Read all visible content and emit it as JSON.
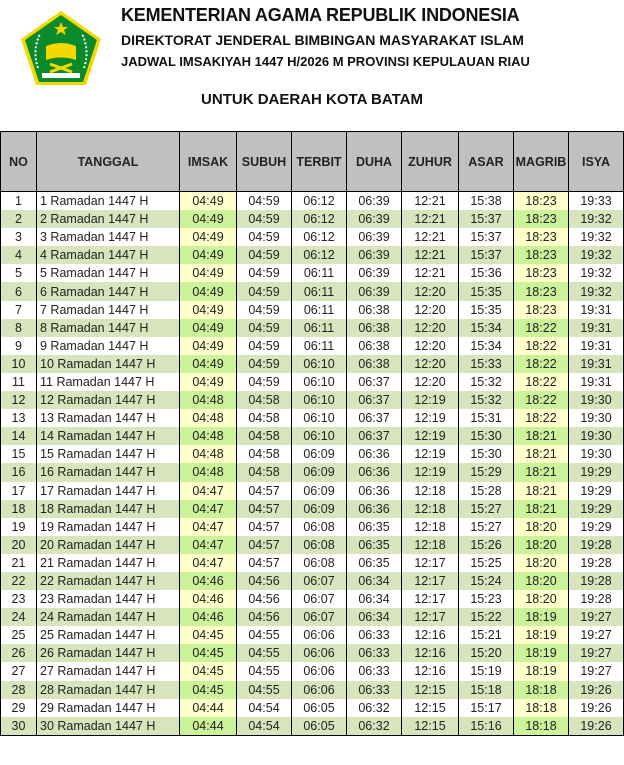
{
  "header": {
    "title": "KEMENTERIAN AGAMA REPUBLIK INDONESIA",
    "subtitle": "DIREKTORAT JENDERAL BIMBINGAN MASYARAKAT ISLAM",
    "schedule": "JADWAL IMSAKIYAH 1447 H/2026 M PROVINSI KEPULAUAN RIAU",
    "region": "UNTUK DAERAH KOTA BATAM",
    "logo_text": "IKHLAS BERAMAL"
  },
  "colors": {
    "header_bg": "#c0c0c0",
    "even_row": "#d8e4bc",
    "highlight_odd": "#ffffcc",
    "highlight_even": "#ccf29a"
  },
  "columns": [
    "NO",
    "TANGGAL",
    "IMSAK",
    "SUBUH",
    "TERBIT",
    "DUHA",
    "ZUHUR",
    "ASAR",
    "MAGRIB",
    "ISYA"
  ],
  "rows": [
    [
      "1",
      "1 Ramadan 1447 H",
      "04:49",
      "04:59",
      "06:12",
      "06:39",
      "12:21",
      "15:38",
      "18:23",
      "19:33"
    ],
    [
      "2",
      "2 Ramadan 1447 H",
      "04:49",
      "04:59",
      "06:12",
      "06:39",
      "12:21",
      "15:37",
      "18:23",
      "19:32"
    ],
    [
      "3",
      "3 Ramadan 1447 H",
      "04:49",
      "04:59",
      "06:12",
      "06:39",
      "12:21",
      "15:37",
      "18:23",
      "19:32"
    ],
    [
      "4",
      "4 Ramadan 1447 H",
      "04:49",
      "04:59",
      "06:12",
      "06:39",
      "12:21",
      "15:37",
      "18:23",
      "19:32"
    ],
    [
      "5",
      "5 Ramadan 1447 H",
      "04:49",
      "04:59",
      "06:11",
      "06:39",
      "12:21",
      "15:36",
      "18:23",
      "19:32"
    ],
    [
      "6",
      "6 Ramadan 1447 H",
      "04:49",
      "04:59",
      "06:11",
      "06:39",
      "12:20",
      "15:35",
      "18:23",
      "19:32"
    ],
    [
      "7",
      "7 Ramadan 1447 H",
      "04:49",
      "04:59",
      "06:11",
      "06:38",
      "12:20",
      "15:35",
      "18:23",
      "19:31"
    ],
    [
      "8",
      "8 Ramadan 1447 H",
      "04:49",
      "04:59",
      "06:11",
      "06:38",
      "12:20",
      "15:34",
      "18:22",
      "19:31"
    ],
    [
      "9",
      "9 Ramadan 1447 H",
      "04:49",
      "04:59",
      "06:11",
      "06:38",
      "12:20",
      "15:34",
      "18:22",
      "19:31"
    ],
    [
      "10",
      "10 Ramadan 1447 H",
      "04:49",
      "04:59",
      "06:10",
      "06:38",
      "12:20",
      "15:33",
      "18:22",
      "19:31"
    ],
    [
      "11",
      "11 Ramadan 1447 H",
      "04:49",
      "04:59",
      "06:10",
      "06:37",
      "12:20",
      "15:32",
      "18:22",
      "19:31"
    ],
    [
      "12",
      "12 Ramadan 1447 H",
      "04:48",
      "04:58",
      "06:10",
      "06:37",
      "12:19",
      "15:32",
      "18:22",
      "19:30"
    ],
    [
      "13",
      "13 Ramadan 1447 H",
      "04:48",
      "04:58",
      "06:10",
      "06:37",
      "12:19",
      "15:31",
      "18:22",
      "19:30"
    ],
    [
      "14",
      "14 Ramadan 1447 H",
      "04:48",
      "04:58",
      "06:10",
      "06:37",
      "12:19",
      "15:30",
      "18:21",
      "19:30"
    ],
    [
      "15",
      "15 Ramadan 1447 H",
      "04:48",
      "04:58",
      "06:09",
      "06:36",
      "12:19",
      "15:30",
      "18:21",
      "19:30"
    ],
    [
      "16",
      "16 Ramadan 1447 H",
      "04:48",
      "04:58",
      "06:09",
      "06:36",
      "12:19",
      "15:29",
      "18:21",
      "19:29"
    ],
    [
      "17",
      "17 Ramadan 1447 H",
      "04:47",
      "04:57",
      "06:09",
      "06:36",
      "12:18",
      "15:28",
      "18:21",
      "19:29"
    ],
    [
      "18",
      "18 Ramadan 1447 H",
      "04:47",
      "04:57",
      "06:09",
      "06:36",
      "12:18",
      "15:27",
      "18:21",
      "19:29"
    ],
    [
      "19",
      "19 Ramadan 1447 H",
      "04:47",
      "04:57",
      "06:08",
      "06:35",
      "12:18",
      "15:27",
      "18:20",
      "19:29"
    ],
    [
      "20",
      "20 Ramadan 1447 H",
      "04:47",
      "04:57",
      "06:08",
      "06:35",
      "12:18",
      "15:26",
      "18:20",
      "19:28"
    ],
    [
      "21",
      "21 Ramadan 1447 H",
      "04:47",
      "04:57",
      "06:08",
      "06:35",
      "12:17",
      "15:25",
      "18:20",
      "19:28"
    ],
    [
      "22",
      "22 Ramadan 1447 H",
      "04:46",
      "04:56",
      "06:07",
      "06:34",
      "12:17",
      "15:24",
      "18:20",
      "19:28"
    ],
    [
      "23",
      "23 Ramadan 1447 H",
      "04:46",
      "04:56",
      "06:07",
      "06:34",
      "12:17",
      "15:23",
      "18:20",
      "19:28"
    ],
    [
      "24",
      "24 Ramadan 1447 H",
      "04:46",
      "04:56",
      "06:07",
      "06:34",
      "12:17",
      "15:22",
      "18:19",
      "19:27"
    ],
    [
      "25",
      "25 Ramadan 1447 H",
      "04:45",
      "04:55",
      "06:06",
      "06:33",
      "12:16",
      "15:21",
      "18:19",
      "19:27"
    ],
    [
      "26",
      "26 Ramadan 1447 H",
      "04:45",
      "04:55",
      "06:06",
      "06:33",
      "12:16",
      "15:20",
      "18:19",
      "19:27"
    ],
    [
      "27",
      "27 Ramadan 1447 H",
      "04:45",
      "04:55",
      "06:06",
      "06:33",
      "12:16",
      "15:19",
      "18:19",
      "19:27"
    ],
    [
      "28",
      "28 Ramadan 1447 H",
      "04:45",
      "04:55",
      "06:06",
      "06:33",
      "12:15",
      "15:18",
      "18:18",
      "19:26"
    ],
    [
      "29",
      "29 Ramadan 1447 H",
      "04:44",
      "04:54",
      "06:05",
      "06:32",
      "12:15",
      "15:17",
      "18:18",
      "19:26"
    ],
    [
      "30",
      "30 Ramadan 1447 H",
      "04:44",
      "04:54",
      "06:05",
      "06:32",
      "12:15",
      "15:16",
      "18:18",
      "19:26"
    ]
  ]
}
